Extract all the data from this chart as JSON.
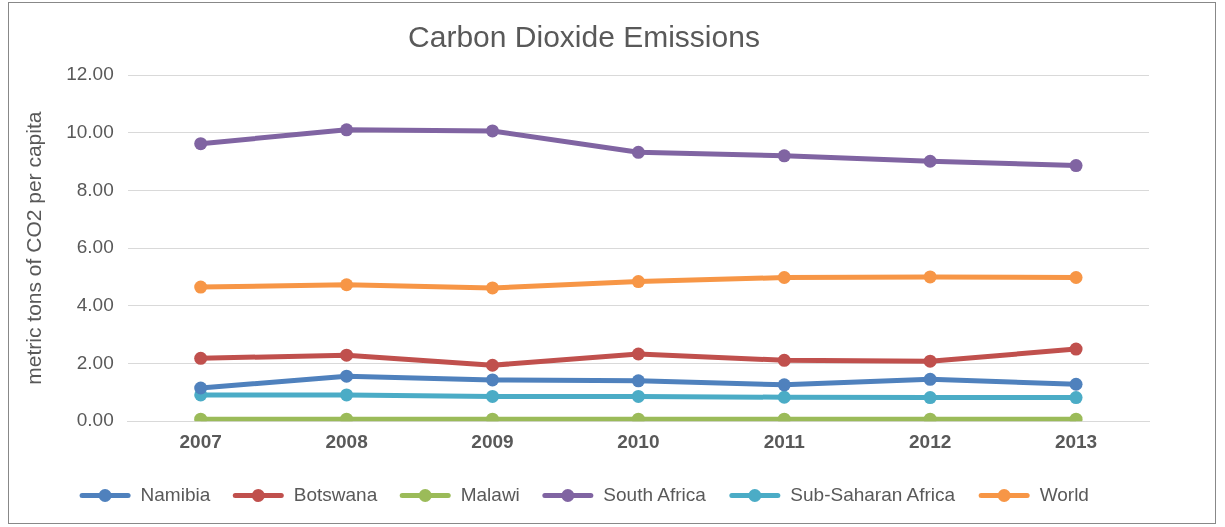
{
  "chart_data": {
    "type": "line",
    "title": "Carbon Dioxide Emissions",
    "ylabel": "metric tons of CO2 per capita",
    "categories": [
      "2007",
      "2008",
      "2009",
      "2010",
      "2011",
      "2012",
      "2013"
    ],
    "series": [
      {
        "name": "Namibia",
        "color": "#4f81bd",
        "values": [
          1.15,
          1.56,
          1.43,
          1.4,
          1.26,
          1.45,
          1.28
        ]
      },
      {
        "name": "Botswana",
        "color": "#c0504d",
        "values": [
          2.18,
          2.29,
          1.94,
          2.33,
          2.11,
          2.08,
          2.5
        ]
      },
      {
        "name": "Malawi",
        "color": "#9bbb59",
        "values": [
          0.07,
          0.07,
          0.07,
          0.07,
          0.07,
          0.07,
          0.07
        ]
      },
      {
        "name": "South Africa",
        "color": "#8064a2",
        "values": [
          9.62,
          10.1,
          10.06,
          9.32,
          9.2,
          9.01,
          8.86
        ]
      },
      {
        "name": "Sub-Saharan Africa",
        "color": "#4bacc6",
        "values": [
          0.91,
          0.91,
          0.86,
          0.86,
          0.83,
          0.82,
          0.82
        ]
      },
      {
        "name": "World",
        "color": "#f79646",
        "values": [
          4.65,
          4.73,
          4.62,
          4.84,
          4.98,
          5.0,
          4.98
        ]
      }
    ],
    "ylim": [
      0,
      12
    ],
    "yticks": [
      {
        "value": 0,
        "label": "0.00"
      },
      {
        "value": 2,
        "label": "2.00"
      },
      {
        "value": 4,
        "label": "4.00"
      },
      {
        "value": 6,
        "label": "6.00"
      },
      {
        "value": 8,
        "label": "8.00"
      },
      {
        "value": 10,
        "label": "10.00"
      },
      {
        "value": 12,
        "label": "12.00"
      }
    ],
    "grid": "y",
    "legend": "bottom",
    "marker": "circle",
    "line_style": "solid"
  }
}
